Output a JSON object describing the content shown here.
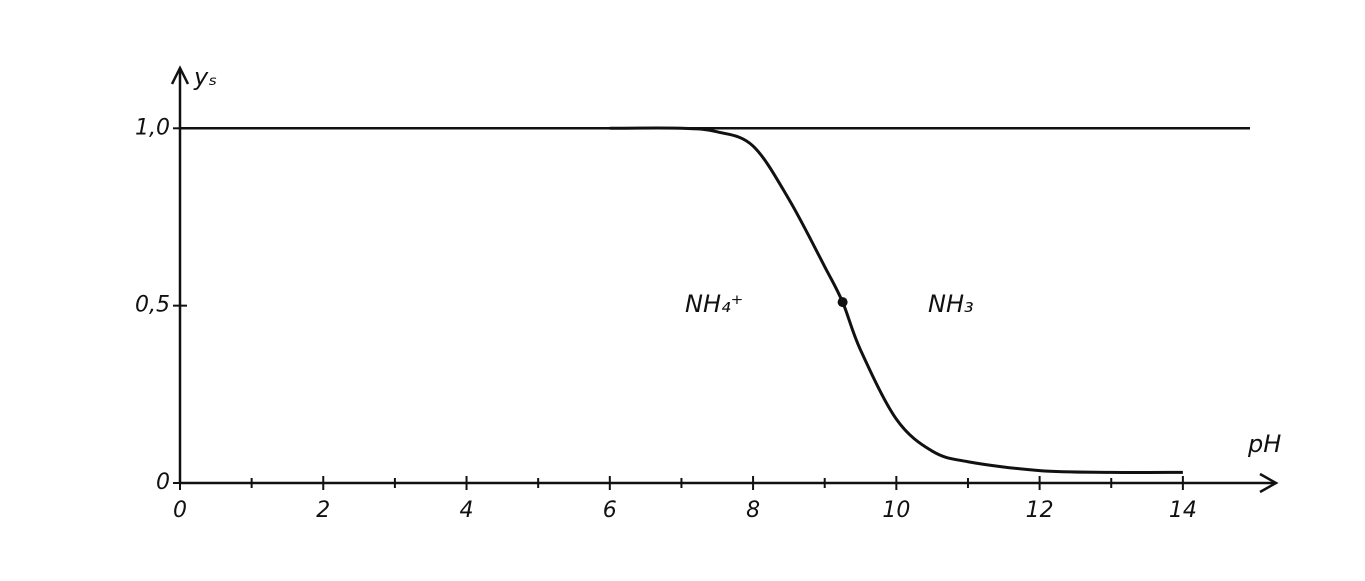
{
  "chart_data": {
    "type": "line",
    "x_label": "pH",
    "y_label": "yₛ",
    "xlim": [
      0,
      15.3
    ],
    "ylim": [
      0,
      1.17
    ],
    "xticks": [
      0,
      2,
      4,
      6,
      8,
      10,
      12,
      14
    ],
    "xminorticks": [
      1,
      3,
      5,
      7,
      9,
      11,
      13
    ],
    "yticks": [
      0,
      {
        "value": 0.5,
        "label": "0,5"
      },
      {
        "value": 1,
        "label": "1,0"
      }
    ],
    "hlines": [
      1
    ],
    "x": [
      6,
      7,
      7.5,
      8,
      8.5,
      9,
      9.25,
      9.5,
      10,
      10.5,
      11,
      12,
      13,
      14
    ],
    "series": [
      {
        "color": "#111111",
        "values": [
          1,
          1,
          0.99,
          0.95,
          0.8,
          0.61,
          0.51,
          0.375,
          0.18,
          0.09,
          0.06,
          0.035,
          0.03,
          0.03
        ]
      }
    ],
    "marked_point": {
      "x": 9.25,
      "y": 0.51
    },
    "annotations": [
      "NH₄⁺",
      "NH₃"
    ]
  }
}
